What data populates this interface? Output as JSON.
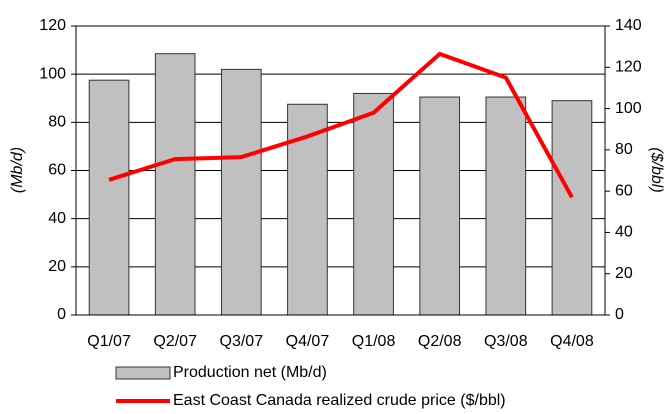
{
  "chart_data": {
    "type": "bar_line",
    "categories": [
      "Q1/07",
      "Q2/07",
      "Q3/07",
      "Q4/07",
      "Q1/08",
      "Q2/08",
      "Q3/08",
      "Q4/08"
    ],
    "series": [
      {
        "name": "Production net (Mb/d)",
        "type": "bar",
        "color": "#c0c0c0",
        "values": [
          97.5,
          108.5,
          102,
          87.5,
          92,
          90.5,
          90.5,
          89
        ]
      },
      {
        "name": "East Coast Canada realized crude price ($/bbl)",
        "type": "line",
        "axis": "y2",
        "color": "#ff0000",
        "values": [
          65.5,
          75.5,
          76.5,
          86.5,
          98,
          126.5,
          115,
          57
        ]
      }
    ],
    "ylabel": "(Mb/d)",
    "y2label": "($/bbl)",
    "ylim": [
      0,
      120
    ],
    "yticks": [
      0,
      20,
      40,
      60,
      80,
      100,
      120
    ],
    "y2lim": [
      0,
      140
    ],
    "y2ticks": [
      0,
      20,
      40,
      60,
      80,
      100,
      120,
      140
    ],
    "grid": true,
    "legend": "bottom"
  }
}
